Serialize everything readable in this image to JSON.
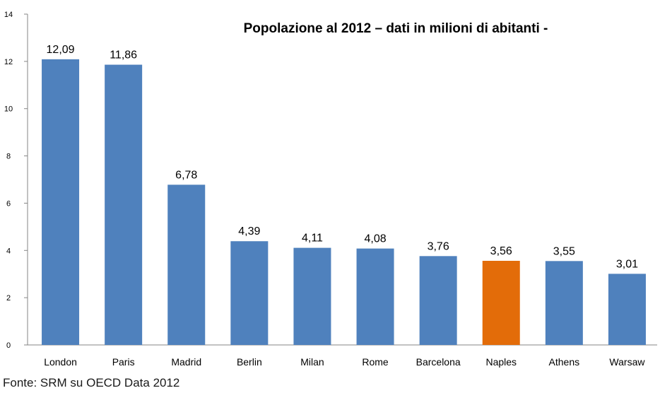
{
  "chart_data": {
    "type": "bar",
    "title": "Popolazione al 2012 –  dati in milioni di abitanti -",
    "categories": [
      "London",
      "Paris",
      "Madrid",
      "Berlin",
      "Milan",
      "Rome",
      "Barcelona",
      "Naples",
      "Athens",
      "Warsaw"
    ],
    "values": [
      12.09,
      11.86,
      6.78,
      4.39,
      4.11,
      4.08,
      3.76,
      3.56,
      3.55,
      3.01
    ],
    "value_labels": [
      "12,09",
      "11,86",
      "6,78",
      "4,39",
      "4,11",
      "4,08",
      "3,76",
      "3,56",
      "3,55",
      "3,01"
    ],
    "bar_colors": [
      "#4f81bd",
      "#4f81bd",
      "#4f81bd",
      "#4f81bd",
      "#4f81bd",
      "#4f81bd",
      "#4f81bd",
      "#e36c09",
      "#4f81bd",
      "#4f81bd"
    ],
    "highlight_category": "Naples",
    "ylim": [
      0,
      14
    ],
    "yticks": [
      0,
      2,
      4,
      6,
      8,
      10,
      12,
      14
    ],
    "grid": false,
    "legend": "none",
    "xlabel": "",
    "ylabel": ""
  },
  "footer": {
    "source": "Fonte: SRM su OECD Data 2012"
  }
}
